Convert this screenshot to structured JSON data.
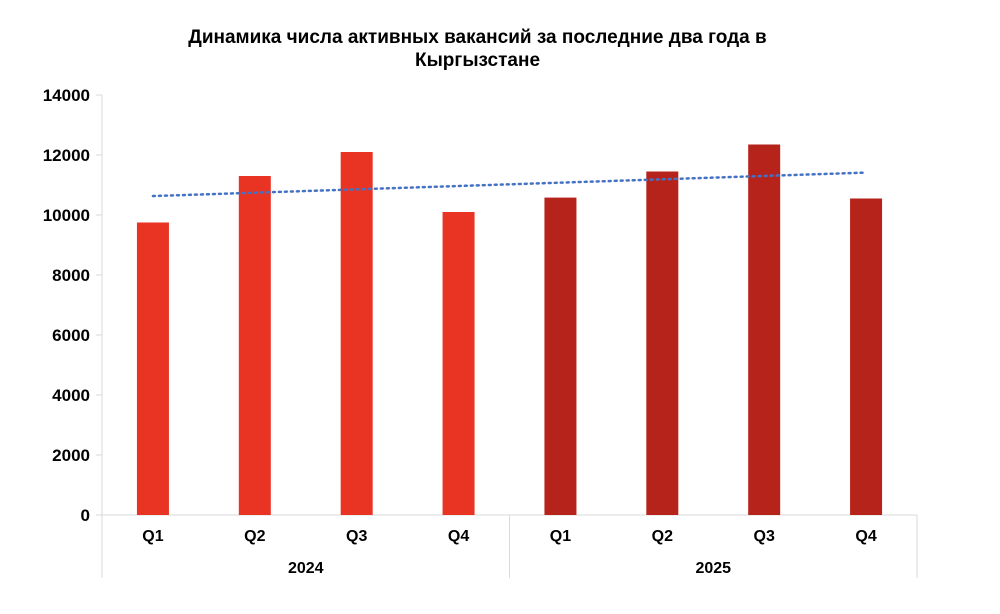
{
  "chart_data": {
    "type": "bar",
    "title": "Динамика числа активных вакансий за последние два года в Кыргызстане",
    "title_lines": [
      "Динамика числа активных вакансий за последние два года в",
      "Кыргызстане"
    ],
    "groups": [
      {
        "label": "2024",
        "categories": [
          "Q1",
          "Q2",
          "Q3",
          "Q4"
        ],
        "values": [
          9750,
          11300,
          12100,
          10100
        ],
        "color": "#e93323"
      },
      {
        "label": "2025",
        "categories": [
          "Q1",
          "Q2",
          "Q3",
          "Q4"
        ],
        "values": [
          10580,
          11450,
          12350,
          10550
        ],
        "color": "#b5231b"
      }
    ],
    "ylim": [
      0,
      14000
    ],
    "yticks": [
      0,
      2000,
      4000,
      6000,
      8000,
      10000,
      12000,
      14000
    ],
    "trendline": {
      "type": "linear",
      "style": "dotted",
      "color": "#4472c4"
    },
    "grid": false,
    "legend": "none"
  }
}
